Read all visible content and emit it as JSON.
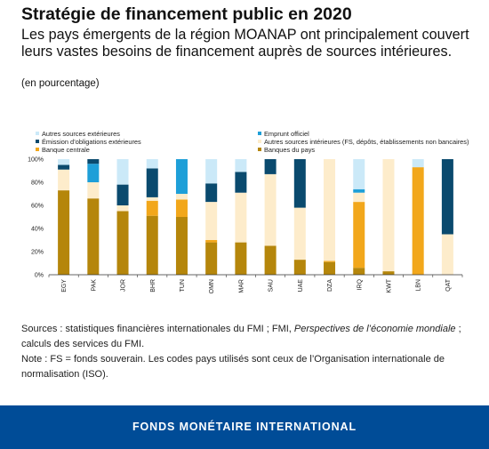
{
  "header": {
    "title": "Stratégie de financement public en 2020",
    "subtitle": "Les pays émergents de la région MOANAP ont principalement couvert leurs vastes besoins de financement auprès de sources intérieures.",
    "unit": "(en pourcentage)"
  },
  "chart_data": {
    "type": "bar",
    "stacked": true,
    "title": "",
    "xlabel": "",
    "ylabel": "",
    "ylim": [
      0,
      100
    ],
    "y_ticks": [
      "0%",
      "20%",
      "40%",
      "60%",
      "80%",
      "100%"
    ],
    "grid": false,
    "legend_position": "top",
    "categories": [
      "EGY",
      "PAK",
      "JOR",
      "BHR",
      "TUN",
      "OMN",
      "MAR",
      "SAU",
      "UAE",
      "DZA",
      "IRQ",
      "KWT",
      "LBN",
      "QAT"
    ],
    "series": [
      {
        "name": "Banques du pays",
        "color": "#b5860b",
        "values": [
          73,
          66,
          55,
          51,
          50,
          28,
          28,
          25,
          13,
          11,
          6,
          3,
          0,
          0
        ]
      },
      {
        "name": "Banque centrale",
        "color": "#f2a71b",
        "values": [
          0,
          0,
          0,
          13,
          15,
          2,
          0,
          0,
          0,
          1,
          57,
          0,
          93,
          0
        ]
      },
      {
        "name": "Autres sources intérieures (FS, dépôts, établissements non bancaires)",
        "color": "#fdeccb",
        "values": [
          18,
          14,
          5,
          3,
          5,
          33,
          43,
          62,
          45,
          88,
          8,
          97,
          0,
          35
        ]
      },
      {
        "name": "Emprunt officiel",
        "color": "#1e9fd8",
        "values": [
          0,
          16,
          0,
          0,
          30,
          0,
          0,
          0,
          0,
          0,
          3,
          0,
          0,
          0
        ]
      },
      {
        "name": "Émission d’obligations extérieures",
        "color": "#0a4a6e",
        "values": [
          4,
          4,
          18,
          25,
          0,
          16,
          18,
          13,
          42,
          0,
          0,
          0,
          0,
          65
        ]
      },
      {
        "name": "Autres sources extérieures",
        "color": "#cbe9f8",
        "values": [
          5,
          0,
          22,
          8,
          0,
          21,
          11,
          0,
          0,
          0,
          26,
          0,
          7,
          0
        ]
      }
    ]
  },
  "legend": [
    {
      "label": "Autres sources extérieures",
      "color": "#cbe9f8"
    },
    {
      "label": "Emprunt officiel",
      "color": "#1e9fd8"
    },
    {
      "label": "Émission d’obligations extérieures",
      "color": "#0a4a6e"
    },
    {
      "label": "Autres sources intérieures (FS, dépôts, établissements non bancaires)",
      "color": "#fdeccb"
    },
    {
      "label": "Banque centrale",
      "color": "#f2a71b"
    },
    {
      "label": "Banques du pays",
      "color": "#b5860b"
    }
  ],
  "notes": {
    "sources_prefix": "Sources : statistiques financières internationales du FMI ; FMI, ",
    "sources_italic": "Perspectives de l’économie mondiale",
    "sources_suffix": " ; calculs des services du FMI.",
    "note": "Note : FS = fonds souverain. Les codes pays utilisés sont ceux de l’Organisation internationale de normalisation (ISO)."
  },
  "footer": {
    "org_name": "FONDS MONÉTAIRE INTERNATIONAL",
    "color": "#004c97"
  }
}
